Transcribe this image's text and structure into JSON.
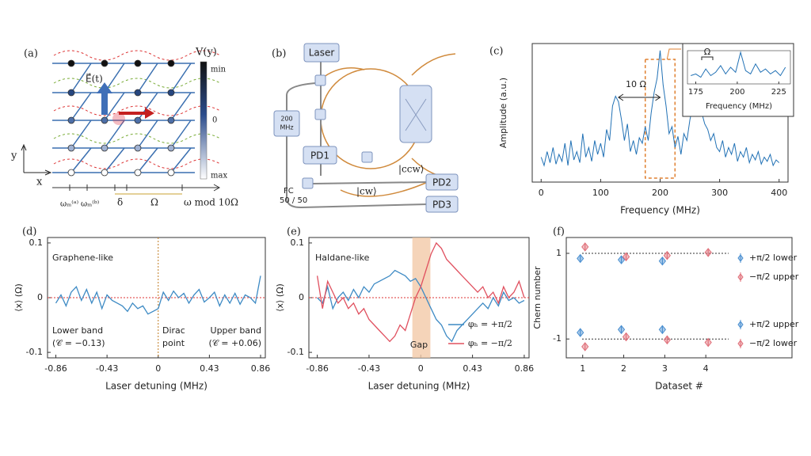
{
  "diagram_a": {
    "label": "(a)",
    "colorbar_title": "V(y)",
    "colorbar_labels": [
      "min",
      "0",
      "max"
    ],
    "field_label": "E⃗(t)",
    "y_axis": "y",
    "x_axis": "x",
    "bottom_labels": [
      "ωₘ⁽ᵃ⁾",
      "ωₘ⁽ᵇ⁾",
      "δ",
      "Ω",
      "ω mod 10Ω"
    ]
  },
  "diagram_b": {
    "label": "(b)",
    "laser": "Laser",
    "modulator": [
      "200",
      "MHz"
    ],
    "detectors": [
      "PD1",
      "PD2",
      "PD3"
    ],
    "coupler": [
      "FC",
      "50 / 50"
    ],
    "modes": [
      "|ccw⟩",
      "|cw⟩"
    ]
  },
  "chart_data": [
    {
      "type": "line",
      "label": "(c)",
      "xlabel": "Frequency (MHz)",
      "ylabel": "Amplitude (a.u.)",
      "annotations": [
        "10 Ω"
      ],
      "xlim": [
        -15,
        415
      ],
      "xticks": [
        0,
        100,
        200,
        300,
        400
      ],
      "ylim": [
        0,
        1
      ],
      "highlight": [
        175,
        225
      ],
      "x": [
        0,
        5,
        10,
        15,
        20,
        25,
        30,
        35,
        40,
        45,
        50,
        55,
        60,
        65,
        70,
        75,
        80,
        85,
        90,
        95,
        100,
        105,
        110,
        115,
        120,
        125,
        130,
        135,
        140,
        145,
        150,
        155,
        160,
        165,
        170,
        175,
        180,
        185,
        190,
        195,
        200,
        205,
        210,
        215,
        220,
        225,
        230,
        235,
        240,
        245,
        250,
        255,
        260,
        265,
        270,
        275,
        280,
        285,
        290,
        295,
        300,
        305,
        310,
        315,
        320,
        325,
        330,
        335,
        340,
        345,
        350,
        355,
        360,
        365,
        370,
        375,
        380,
        385,
        390,
        395,
        400
      ],
      "series": [
        {
          "color": "#2171b5",
          "values": [
            0.18,
            0.12,
            0.22,
            0.14,
            0.25,
            0.13,
            0.2,
            0.15,
            0.28,
            0.12,
            0.3,
            0.16,
            0.22,
            0.14,
            0.35,
            0.18,
            0.25,
            0.15,
            0.3,
            0.2,
            0.28,
            0.18,
            0.38,
            0.3,
            0.55,
            0.62,
            0.58,
            0.45,
            0.3,
            0.42,
            0.22,
            0.3,
            0.2,
            0.32,
            0.28,
            0.4,
            0.3,
            0.5,
            0.65,
            0.75,
            0.95,
            0.7,
            0.55,
            0.35,
            0.4,
            0.25,
            0.33,
            0.2,
            0.35,
            0.3,
            0.45,
            0.55,
            0.62,
            0.7,
            0.5,
            0.42,
            0.38,
            0.3,
            0.35,
            0.25,
            0.22,
            0.3,
            0.18,
            0.25,
            0.2,
            0.28,
            0.15,
            0.22,
            0.18,
            0.25,
            0.14,
            0.2,
            0.16,
            0.22,
            0.13,
            0.18,
            0.15,
            0.2,
            0.12,
            0.16,
            0.14
          ]
        }
      ],
      "inset": {
        "xlabel": "Frequency (MHz)",
        "annotation": "Ω",
        "xlim": [
          170,
          232
        ],
        "xticks": [
          175,
          200,
          225
        ],
        "ylim": [
          0,
          1
        ],
        "color": "#2171b5",
        "x": [
          172,
          175,
          178,
          181,
          184,
          187,
          190,
          193,
          196,
          199,
          202,
          205,
          208,
          211,
          214,
          217,
          220,
          223,
          226,
          229
        ],
        "values": [
          0.25,
          0.3,
          0.2,
          0.45,
          0.25,
          0.35,
          0.55,
          0.3,
          0.5,
          0.35,
          0.95,
          0.4,
          0.3,
          0.6,
          0.35,
          0.45,
          0.3,
          0.4,
          0.25,
          0.5
        ]
      }
    },
    {
      "type": "line",
      "label": "(d)",
      "xlabel": "Laser detuning (MHz)",
      "ylabel": "⟨x⟩ (Ω)",
      "annotations": [
        "Graphene-like",
        "Lower band",
        "(𝒞 = −0.13)",
        "Dirac",
        "point",
        "Upper band",
        "(𝒞 = +0.06)"
      ],
      "xlim": [
        -0.93,
        0.9
      ],
      "xticks": [
        -0.86,
        -0.43,
        0,
        0.43,
        0.86
      ],
      "ylim": [
        -0.11,
        0.11
      ],
      "yticks": [
        -0.1,
        0,
        0.1
      ],
      "hline": 0,
      "vline": 0,
      "x": [
        -0.86,
        -0.817,
        -0.774,
        -0.731,
        -0.688,
        -0.645,
        -0.602,
        -0.559,
        -0.516,
        -0.473,
        -0.43,
        -0.387,
        -0.344,
        -0.301,
        -0.258,
        -0.215,
        -0.172,
        -0.129,
        -0.086,
        -0.043,
        0,
        0.043,
        0.086,
        0.129,
        0.172,
        0.215,
        0.258,
        0.301,
        0.344,
        0.387,
        0.43,
        0.473,
        0.516,
        0.559,
        0.602,
        0.645,
        0.688,
        0.731,
        0.774,
        0.817,
        0.86
      ],
      "series": [
        {
          "color": "#3d8ac4",
          "values": [
            -0.01,
            0.005,
            -0.015,
            0.01,
            0.02,
            -0.005,
            0.015,
            -0.01,
            0.01,
            -0.02,
            0.005,
            -0.005,
            -0.01,
            -0.015,
            -0.025,
            -0.01,
            -0.02,
            -0.015,
            -0.03,
            -0.025,
            -0.02,
            0.01,
            -0.005,
            0.012,
            0.0,
            0.008,
            -0.01,
            0.005,
            0.015,
            -0.008,
            0.0,
            0.01,
            -0.015,
            0.005,
            -0.01,
            0.008,
            -0.012,
            0.005,
            0.0,
            -0.01,
            0.04
          ]
        }
      ]
    },
    {
      "type": "line",
      "label": "(e)",
      "xlabel": "Laser detuning (MHz)",
      "ylabel": "⟨x⟩ (Ω)",
      "annotations": [
        "Haldane-like",
        "Gap"
      ],
      "xlim": [
        -0.93,
        0.9
      ],
      "xticks": [
        -0.86,
        -0.43,
        0,
        0.43,
        0.86
      ],
      "ylim": [
        -0.11,
        0.11
      ],
      "yticks": [
        -0.1,
        0,
        0.1
      ],
      "hline": 0,
      "shade": [
        -0.07,
        0.08
      ],
      "x": [
        -0.86,
        -0.817,
        -0.774,
        -0.731,
        -0.688,
        -0.645,
        -0.602,
        -0.559,
        -0.516,
        -0.473,
        -0.43,
        -0.387,
        -0.344,
        -0.301,
        -0.258,
        -0.215,
        -0.172,
        -0.129,
        -0.086,
        -0.043,
        0,
        0.043,
        0.086,
        0.129,
        0.172,
        0.215,
        0.258,
        0.301,
        0.344,
        0.387,
        0.43,
        0.473,
        0.516,
        0.559,
        0.602,
        0.645,
        0.688,
        0.731,
        0.774,
        0.817,
        0.86
      ],
      "series": [
        {
          "name": "φₕ = +π/2",
          "color": "#3d8ac4",
          "values": [
            0.0,
            -0.01,
            0.02,
            -0.02,
            0.0,
            0.01,
            -0.005,
            0.015,
            0.0,
            0.02,
            0.01,
            0.025,
            0.03,
            0.035,
            0.04,
            0.05,
            0.045,
            0.04,
            0.03,
            0.035,
            0.02,
            0.0,
            -0.02,
            -0.04,
            -0.05,
            -0.07,
            -0.08,
            -0.06,
            -0.05,
            -0.04,
            -0.03,
            -0.02,
            -0.01,
            -0.02,
            0.0,
            -0.015,
            0.01,
            -0.005,
            0.0,
            -0.01,
            -0.005
          ]
        },
        {
          "name": "φₕ = −π/2",
          "color": "#e0505f",
          "values": [
            0.04,
            -0.02,
            0.03,
            0.01,
            -0.01,
            0.0,
            -0.02,
            -0.01,
            -0.03,
            -0.02,
            -0.04,
            -0.05,
            -0.06,
            -0.07,
            -0.08,
            -0.07,
            -0.05,
            -0.06,
            -0.03,
            0.0,
            0.02,
            0.05,
            0.08,
            0.1,
            0.09,
            0.07,
            0.06,
            0.05,
            0.04,
            0.03,
            0.02,
            0.01,
            0.02,
            0.0,
            0.01,
            -0.01,
            0.02,
            0.0,
            0.01,
            0.03,
            0.0
          ]
        }
      ]
    },
    {
      "type": "scatter",
      "label": "(f)",
      "xlabel": "Dataset #",
      "ylabel": "Chern number",
      "xlim": [
        0.6,
        6.1
      ],
      "xticks": [
        1,
        2,
        3,
        4
      ],
      "ylim": [
        -1.44,
        1.37
      ],
      "yticks": [
        -1,
        1
      ],
      "hlines": [
        1,
        -1
      ],
      "series": [
        {
          "name": "+π/2 lower",
          "color": "#4a8fd0",
          "x": [
            1,
            2,
            3
          ],
          "values": [
            0.88,
            0.85,
            0.82
          ],
          "errors": [
            0.08,
            0.08,
            0.08
          ]
        },
        {
          "name": "−π/2 upper",
          "color": "#e0707a",
          "x": [
            1,
            2,
            3,
            4
          ],
          "values": [
            1.15,
            0.92,
            0.95,
            1.02
          ],
          "errors": [
            0.08,
            0.08,
            0.08,
            0.08
          ]
        },
        {
          "name": "+π/2 upper",
          "color": "#4a8fd0",
          "x": [
            1,
            2,
            3
          ],
          "values": [
            -0.85,
            -0.78,
            -0.78
          ],
          "errors": [
            0.08,
            0.08,
            0.08
          ]
        },
        {
          "name": "−π/2 lower",
          "color": "#e0707a",
          "x": [
            1,
            2,
            3,
            4
          ],
          "values": [
            -1.18,
            -0.95,
            -1.02,
            -1.08
          ],
          "errors": [
            0.08,
            0.08,
            0.08,
            0.08
          ]
        }
      ]
    }
  ]
}
